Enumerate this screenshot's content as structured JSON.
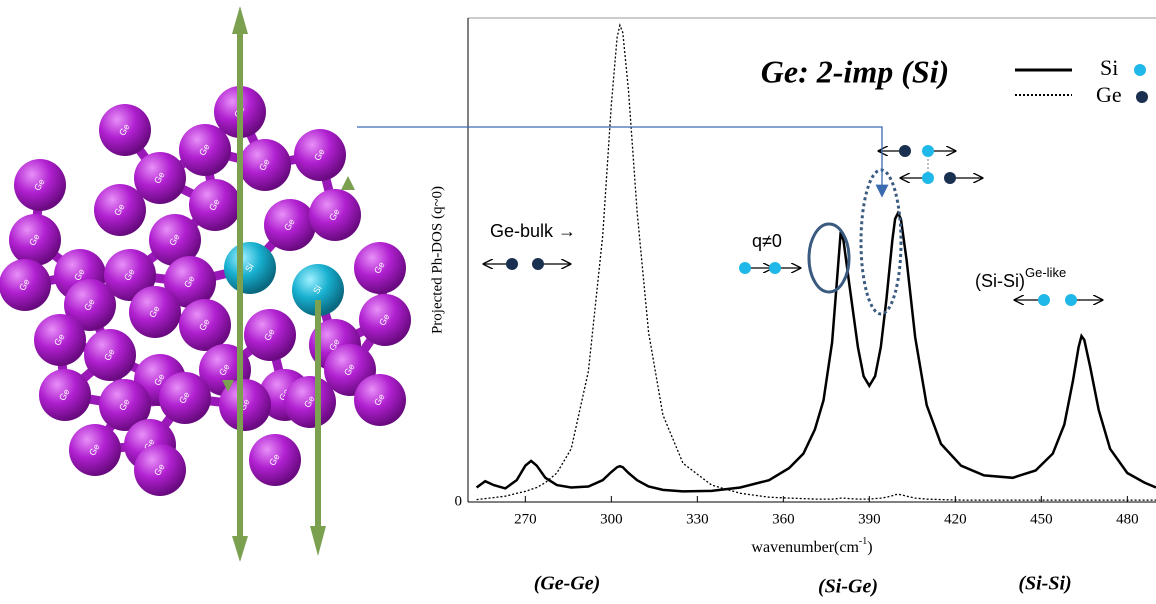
{
  "model": {
    "atoms": [
      "Ge",
      "Ge",
      "Ge",
      "Ge",
      "Ge",
      "Ge",
      "Ge",
      "Ge",
      "Ge",
      "Ge",
      "Ge",
      "Ge",
      "Ge",
      "Ge",
      "Ge",
      "Ge",
      "Ge",
      "Ge",
      "Ge",
      "Ge",
      "Ge",
      "Ge",
      "Ge",
      "Ge",
      "Ge",
      "Ge",
      "Ge",
      "Ge",
      "Ge",
      "Ge",
      "Ge",
      "Ge",
      "Ge",
      "Ge",
      "Ge",
      "Ge",
      "Ge",
      "Ge",
      "Ge",
      "Ge",
      "Si",
      "Si"
    ]
  },
  "chart_data": {
    "type": "line",
    "title": "Ge: 2-imp (Si)",
    "x_label": "wavenumber(cm",
    "x_label_sup": "-1",
    "x_label_end": ")",
    "y_label": "Projected Ph-DOS (q~0)",
    "annotations": {
      "ge_bulk": "Ge-bulk →",
      "q": "q≠0",
      "sisi": "(Si-Si)",
      "sisi_sup": "Ge-like",
      "band_gege": "(Ge-Ge)",
      "band_sige": "(Si-Ge)",
      "band_sisi": "(Si-Si)"
    },
    "x": [
      253,
      256,
      259,
      263,
      267,
      270,
      272,
      274,
      277,
      281,
      286,
      292,
      297,
      300,
      302,
      303,
      304,
      306,
      309,
      313,
      318,
      325,
      335,
      345,
      355,
      362,
      367,
      371,
      374,
      377,
      379,
      380,
      381,
      383,
      386,
      388,
      390,
      392,
      394,
      396,
      398,
      399,
      400,
      401,
      403,
      406,
      410,
      415,
      422,
      430,
      440,
      448,
      454,
      458,
      461,
      463,
      464,
      465,
      467,
      470,
      474,
      480,
      486,
      490
    ],
    "series": [
      {
        "name": "Si",
        "color": "#000000",
        "line_style": "solid",
        "values": [
          0.03,
          0.043,
          0.035,
          0.028,
          0.045,
          0.075,
          0.085,
          0.075,
          0.05,
          0.035,
          0.03,
          0.032,
          0.045,
          0.062,
          0.072,
          0.074,
          0.072,
          0.06,
          0.045,
          0.032,
          0.025,
          0.022,
          0.023,
          0.03,
          0.045,
          0.07,
          0.1,
          0.15,
          0.21,
          0.33,
          0.48,
          0.558,
          0.54,
          0.45,
          0.32,
          0.26,
          0.24,
          0.26,
          0.32,
          0.42,
          0.54,
          0.585,
          0.597,
          0.585,
          0.5,
          0.34,
          0.2,
          0.12,
          0.075,
          0.055,
          0.05,
          0.065,
          0.1,
          0.16,
          0.25,
          0.32,
          0.343,
          0.335,
          0.28,
          0.19,
          0.11,
          0.06,
          0.04,
          0.03
        ]
      },
      {
        "name": "Ge",
        "color": "#000000",
        "line_style": "dotted",
        "values": [
          0.005,
          0.007,
          0.009,
          0.012,
          0.018,
          0.022,
          0.026,
          0.03,
          0.04,
          0.06,
          0.11,
          0.27,
          0.55,
          0.82,
          0.96,
          0.985,
          0.97,
          0.85,
          0.6,
          0.35,
          0.18,
          0.08,
          0.035,
          0.018,
          0.01,
          0.008,
          0.007,
          0.006,
          0.006,
          0.006,
          0.007,
          0.008,
          0.008,
          0.007,
          0.006,
          0.006,
          0.006,
          0.007,
          0.008,
          0.01,
          0.013,
          0.015,
          0.016,
          0.015,
          0.012,
          0.008,
          0.006,
          0.005,
          0.004,
          0.004,
          0.004,
          0.004,
          0.004,
          0.004,
          0.004,
          0.004,
          0.004,
          0.004,
          0.004,
          0.004,
          0.004,
          0.004,
          0.004,
          0.004
        ]
      }
    ],
    "xlim": [
      250,
      490
    ],
    "xticks": [
      270,
      300,
      330,
      360,
      390,
      420,
      450,
      480
    ],
    "ylim": [
      0,
      1
    ],
    "yticks": [
      0
    ]
  }
}
